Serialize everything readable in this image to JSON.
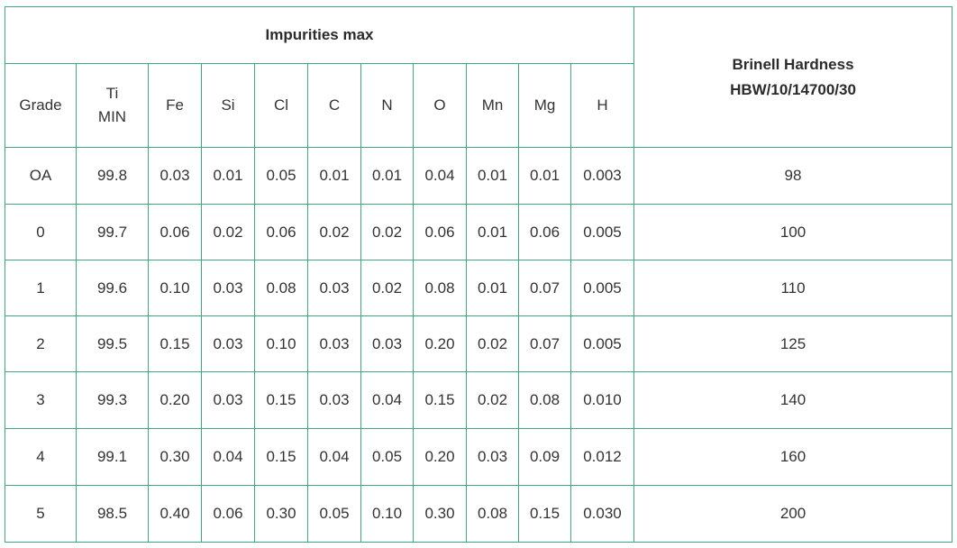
{
  "table": {
    "group_header": "Impurities max",
    "hardness_header": [
      "Brinell Hardness",
      "HBW/10/14700/30"
    ],
    "columns": [
      "Grade",
      "Ti MIN",
      "Fe",
      "Si",
      "Cl",
      "C",
      "N",
      "O",
      "Mn",
      "Mg",
      "H"
    ],
    "rows": [
      [
        "OA",
        "99.8",
        "0.03",
        "0.01",
        "0.05",
        "0.01",
        "0.01",
        "0.04",
        "0.01",
        "0.01",
        "0.003",
        "98"
      ],
      [
        "0",
        "99.7",
        "0.06",
        "0.02",
        "0.06",
        "0.02",
        "0.02",
        "0.06",
        "0.01",
        "0.06",
        "0.005",
        "100"
      ],
      [
        "1",
        "99.6",
        "0.10",
        "0.03",
        "0.08",
        "0.03",
        "0.02",
        "0.08",
        "0.01",
        "0.07",
        "0.005",
        "110"
      ],
      [
        "2",
        "99.5",
        "0.15",
        "0.03",
        "0.10",
        "0.03",
        "0.03",
        "0.20",
        "0.02",
        "0.07",
        "0.005",
        "125"
      ],
      [
        "3",
        "99.3",
        "0.20",
        "0.03",
        "0.15",
        "0.03",
        "0.04",
        "0.15",
        "0.02",
        "0.08",
        "0.010",
        "140"
      ],
      [
        "4",
        "99.1",
        "0.30",
        "0.04",
        "0.15",
        "0.04",
        "0.05",
        "0.20",
        "0.03",
        "0.09",
        "0.012",
        "160"
      ],
      [
        "5",
        "98.5",
        "0.40",
        "0.06",
        "0.30",
        "0.05",
        "0.10",
        "0.30",
        "0.08",
        "0.15",
        "0.030",
        "200"
      ]
    ]
  }
}
